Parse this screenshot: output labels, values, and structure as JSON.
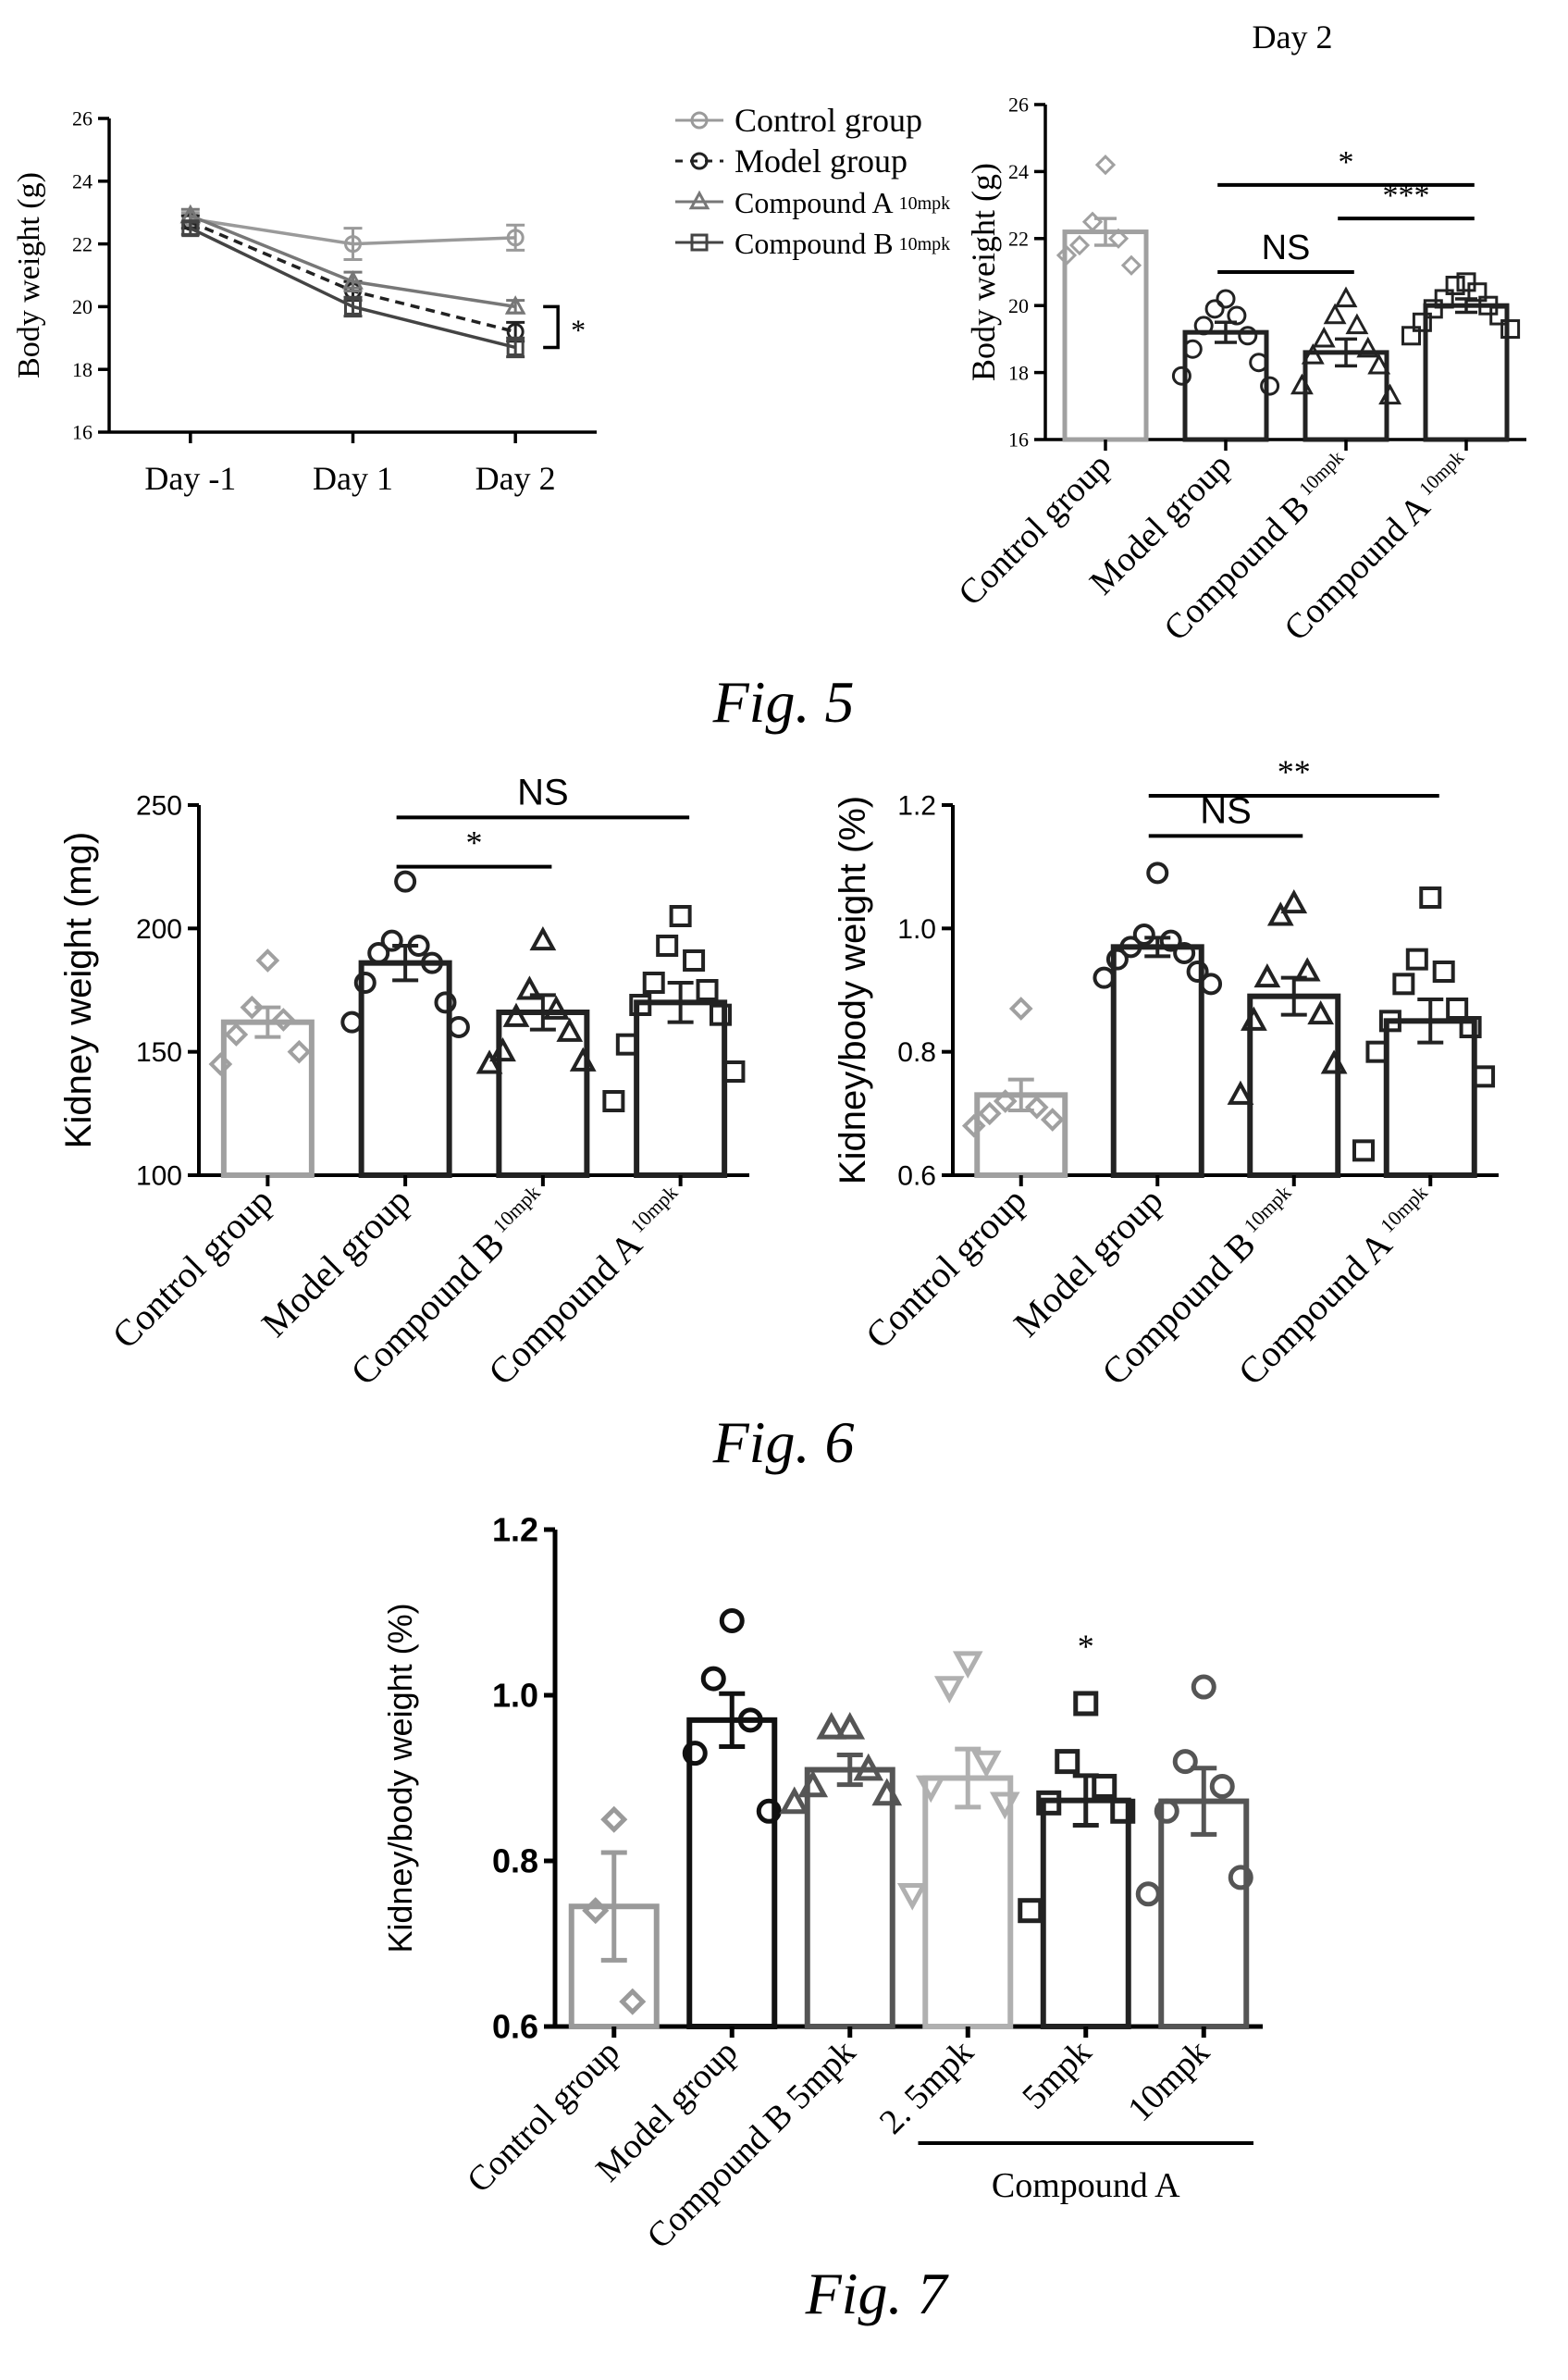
{
  "figure_labels": [
    "Fig. 5",
    "Fig. 6",
    "Fig. 7"
  ],
  "chart_data": [
    {
      "id": "fig5a",
      "type": "line",
      "title": "",
      "xlabel": "",
      "ylabel": "Body weight (g)",
      "ylim": [
        16,
        26
      ],
      "yticks": [
        16,
        18,
        20,
        22,
        24,
        26
      ],
      "categories": [
        "Day -1",
        "Day 1",
        "Day 2"
      ],
      "grid": false,
      "legend_position": "top-right",
      "series": [
        {
          "name": "Control group",
          "sub": "",
          "values": [
            22.8,
            22.0,
            22.2
          ],
          "errors": [
            0.2,
            0.5,
            0.4
          ],
          "marker": "circle",
          "color": "#9a9a9a",
          "dash": ""
        },
        {
          "name": "Model group",
          "sub": "",
          "values": [
            22.7,
            20.5,
            19.2
          ],
          "errors": [
            0.2,
            0.3,
            0.3
          ],
          "marker": "circle",
          "color": "#222222",
          "dash": "10,7"
        },
        {
          "name": "Compound A",
          "sub": "10mpk",
          "values": [
            22.9,
            20.8,
            20.0
          ],
          "errors": [
            0.2,
            0.3,
            0.2
          ],
          "marker": "triangle",
          "color": "#777777",
          "dash": ""
        },
        {
          "name": "Compound B",
          "sub": "10mpk",
          "values": [
            22.5,
            20.0,
            18.7
          ],
          "errors": [
            0.2,
            0.3,
            0.3
          ],
          "marker": "square",
          "color": "#444444",
          "dash": ""
        }
      ],
      "annotations": [
        {
          "label": "*",
          "between": [
            "Compound A",
            "Compound B"
          ],
          "at": "Day 2"
        }
      ]
    },
    {
      "id": "fig5b",
      "type": "bar",
      "title": "Day 2",
      "xlabel": "",
      "ylabel": "Body weight (g)",
      "ylim": [
        16,
        26
      ],
      "yticks": [
        16,
        18,
        20,
        22,
        24,
        26
      ],
      "categories": [
        {
          "label": "Control group",
          "sub": ""
        },
        {
          "label": "Model group",
          "sub": ""
        },
        {
          "label": "Compound B",
          "sub": "10mpk"
        },
        {
          "label": "Compound A",
          "sub": "10mpk"
        }
      ],
      "values": [
        22.2,
        19.2,
        18.6,
        20.0
      ],
      "errors": [
        0.4,
        0.3,
        0.4,
        0.2
      ],
      "points": [
        [
          24.2,
          22.5,
          22.0,
          21.8,
          21.2,
          21.5
        ],
        [
          20.2,
          19.9,
          19.7,
          19.4,
          19.1,
          18.7,
          18.3,
          17.9,
          17.6
        ],
        [
          20.2,
          19.7,
          19.4,
          19.0,
          18.7,
          18.5,
          18.2,
          17.6,
          17.3
        ],
        [
          20.7,
          20.6,
          20.4,
          20.2,
          20.0,
          19.9,
          19.7,
          19.5,
          19.3,
          19.1
        ]
      ],
      "markers": [
        "diamond",
        "circle",
        "triangle",
        "square"
      ],
      "colors": [
        "#a0a0a0",
        "#222222",
        "#222222",
        "#222222"
      ],
      "significance": [
        {
          "from": 1,
          "to": 2,
          "label": "NS",
          "y": 21.0
        },
        {
          "from": 1,
          "to": 3,
          "label": "*",
          "y": 23.6
        },
        {
          "from": 2,
          "to": 3,
          "label": "***",
          "y": 22.6
        }
      ]
    },
    {
      "id": "fig6a",
      "type": "bar",
      "title": "",
      "xlabel": "",
      "ylabel": "Kidney weight (mg)",
      "ylim": [
        100,
        250
      ],
      "yticks": [
        100,
        150,
        200,
        250
      ],
      "categories": [
        {
          "label": "Control group",
          "sub": ""
        },
        {
          "label": "Model group",
          "sub": ""
        },
        {
          "label": "Compound B",
          "sub": "10mpk"
        },
        {
          "label": "Compound A",
          "sub": "10mpk"
        }
      ],
      "values": [
        162,
        186,
        166,
        170
      ],
      "errors": [
        6,
        7,
        7,
        8
      ],
      "points": [
        [
          187,
          168,
          163,
          157,
          150,
          145
        ],
        [
          219,
          195,
          193,
          190,
          186,
          178,
          170,
          162,
          160
        ],
        [
          195,
          175,
          167,
          164,
          158,
          150,
          146,
          145
        ],
        [
          205,
          193,
          187,
          178,
          175,
          169,
          165,
          153,
          142,
          130
        ]
      ],
      "markers": [
        "diamond",
        "circle",
        "triangle",
        "square"
      ],
      "colors": [
        "#a0a0a0",
        "#222222",
        "#222222",
        "#222222"
      ],
      "significance": [
        {
          "from": 1,
          "to": 2,
          "label": "*",
          "y": 225
        },
        {
          "from": 1,
          "to": 3,
          "label": "NS",
          "y": 245
        }
      ]
    },
    {
      "id": "fig6b",
      "type": "bar",
      "title": "",
      "xlabel": "",
      "ylabel": "Kidney/body weight (%)",
      "ylim": [
        0.6,
        1.2
      ],
      "yticks": [
        0.6,
        0.8,
        1.0,
        1.2
      ],
      "categories": [
        {
          "label": "Control group",
          "sub": ""
        },
        {
          "label": "Model group",
          "sub": ""
        },
        {
          "label": "Compound B",
          "sub": "10mpk"
        },
        {
          "label": "Compound A",
          "sub": "10mpk"
        }
      ],
      "values": [
        0.73,
        0.97,
        0.89,
        0.85
      ],
      "errors": [
        0.025,
        0.015,
        0.03,
        0.035
      ],
      "points": [
        [
          0.87,
          0.72,
          0.71,
          0.7,
          0.69,
          0.68
        ],
        [
          1.09,
          0.99,
          0.98,
          0.97,
          0.96,
          0.95,
          0.93,
          0.92,
          0.91
        ],
        [
          1.04,
          1.02,
          0.93,
          0.92,
          0.86,
          0.85,
          0.78,
          0.73
        ],
        [
          1.05,
          0.95,
          0.93,
          0.91,
          0.87,
          0.85,
          0.84,
          0.8,
          0.76,
          0.64
        ]
      ],
      "markers": [
        "diamond",
        "circle",
        "triangle",
        "square"
      ],
      "colors": [
        "#a0a0a0",
        "#222222",
        "#222222",
        "#222222"
      ],
      "significance": [
        {
          "from": 1,
          "to": 2,
          "label": "NS",
          "y": 1.15
        },
        {
          "from": 1,
          "to": 3,
          "label": "**",
          "y": 1.215
        }
      ]
    },
    {
      "id": "fig7",
      "type": "bar",
      "title": "",
      "xlabel": "",
      "ylabel": "Kidney/body weight (%)",
      "ylim": [
        0.6,
        1.2
      ],
      "yticks": [
        0.6,
        0.8,
        1.0,
        1.2
      ],
      "categories": [
        {
          "label": "Control group",
          "sub": ""
        },
        {
          "label": "Model group",
          "sub": ""
        },
        {
          "label": "Compound B 5mpk",
          "sub": ""
        },
        {
          "label": "2. 5mpk",
          "sub": ""
        },
        {
          "label": "5mpk",
          "sub": ""
        },
        {
          "label": "10mpk",
          "sub": ""
        }
      ],
      "group_label": {
        "text": "Compound A",
        "from": 3,
        "to": 5
      },
      "values": [
        0.745,
        0.97,
        0.91,
        0.9,
        0.873,
        0.872
      ],
      "errors": [
        0.065,
        0.032,
        0.018,
        0.035,
        0.03,
        0.04
      ],
      "points": [
        [
          0.85,
          0.74,
          0.63
        ],
        [
          1.09,
          1.02,
          0.97,
          0.93,
          0.86
        ],
        [
          0.96,
          0.96,
          0.91,
          0.89,
          0.88,
          0.87
        ],
        [
          1.04,
          1.01,
          0.92,
          0.89,
          0.87,
          0.76
        ],
        [
          0.99,
          0.92,
          0.89,
          0.87,
          0.86,
          0.74
        ],
        [
          1.01,
          0.92,
          0.89,
          0.86,
          0.78,
          0.76
        ]
      ],
      "markers": [
        "diamond",
        "circle",
        "triangle",
        "triangle-down",
        "square",
        "circle"
      ],
      "colors": [
        "#9a9a9a",
        "#111111",
        "#555555",
        "#b0b0b0",
        "#222222",
        "#555555"
      ],
      "significance_marks": [
        {
          "index": 4,
          "label": "*"
        }
      ]
    }
  ]
}
